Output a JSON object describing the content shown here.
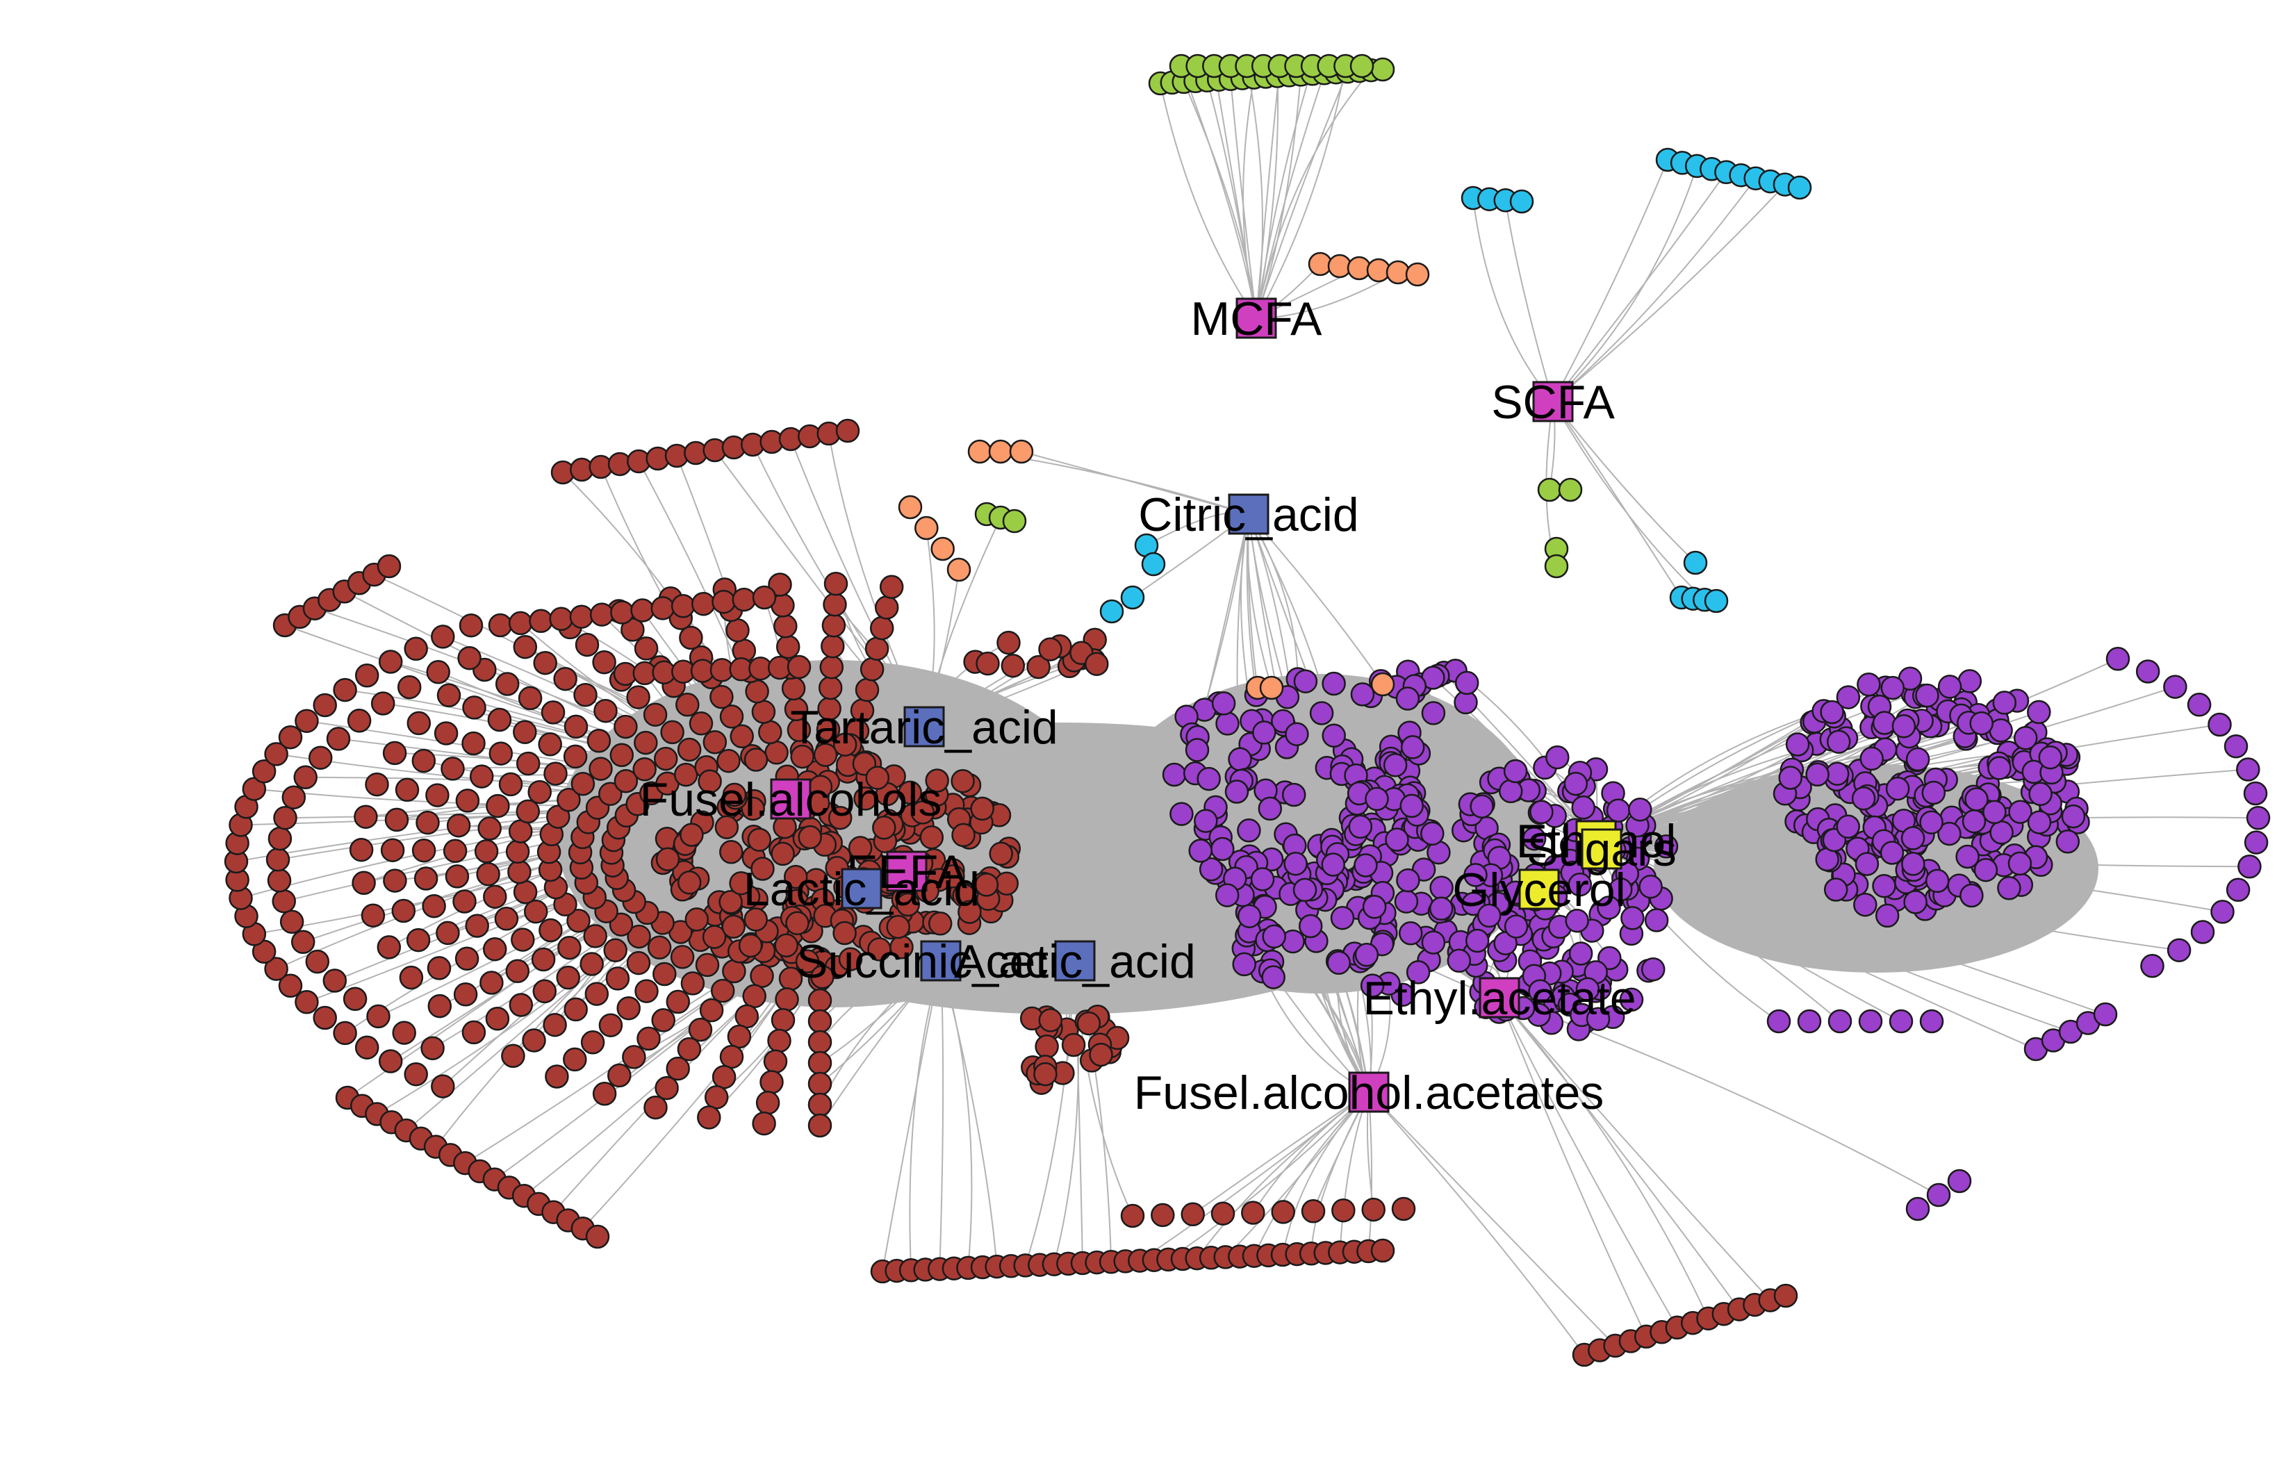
{
  "colors": {
    "edge": "#b3b3b3",
    "dense_core": "#b3b3b3",
    "node_stroke": "#1a1a1a",
    "red_cluster": "#a83a34",
    "purple_cluster": "#9a40cc",
    "green_cluster": "#9acd44",
    "blue_cluster": "#29c1ec",
    "orange_cluster": "#fb9a6a",
    "hub_acid": "#5b6fbd",
    "hub_ester": "#cf3fbf",
    "hub_yeast": "#ecec2c"
  },
  "hubs": [
    {
      "id": "mcfa",
      "label": "MCFA",
      "color": "#cf3fbf"
    },
    {
      "id": "scfa",
      "label": "SCFA",
      "color": "#cf3fbf"
    },
    {
      "id": "citric",
      "label": "Citric_acid",
      "color": "#5b6fbd"
    },
    {
      "id": "tartaric",
      "label": "Tartaric_acid",
      "color": "#5b6fbd"
    },
    {
      "id": "fusel",
      "label": "Fusel.alcohols",
      "color": "#cf3fbf"
    },
    {
      "id": "eefa",
      "label": "EEFA",
      "color": "#cf3fbf"
    },
    {
      "id": "lactic",
      "label": "Lactic_acid",
      "color": "#5b6fbd"
    },
    {
      "id": "succinic",
      "label": "Succinic_acid",
      "color": "#5b6fbd"
    },
    {
      "id": "acetic",
      "label": "Acetic_acid",
      "color": "#5b6fbd"
    },
    {
      "id": "ethanol",
      "label": "Ethanol",
      "color": "#ecec2c"
    },
    {
      "id": "sugars",
      "label": "Sugars",
      "color": "#ecec2c"
    },
    {
      "id": "glycerol",
      "label": "Glycerol",
      "color": "#ecec2c"
    },
    {
      "id": "ethylacetate",
      "label": "Ethyl.acetate",
      "color": "#cf3fbf"
    },
    {
      "id": "fuselacetates",
      "label": "Fusel.alcohol.acetates",
      "color": "#cf3fbf"
    }
  ]
}
